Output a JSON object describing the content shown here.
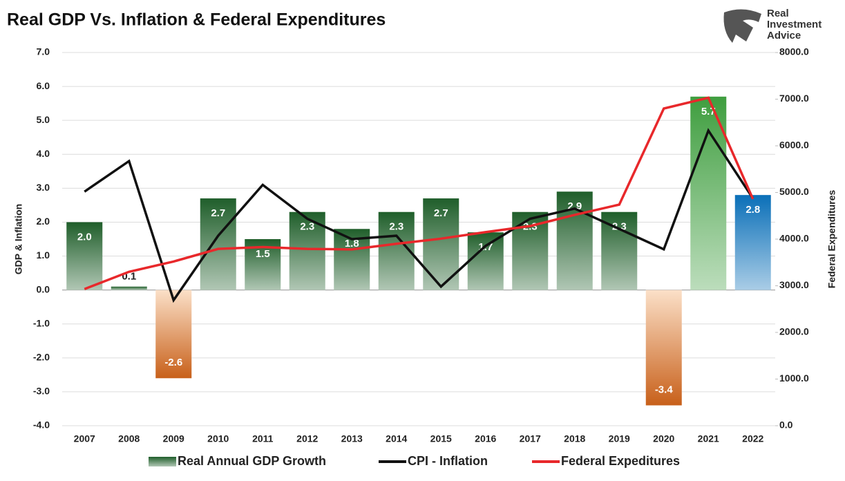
{
  "chart_data": {
    "type": "bar",
    "title": "Real GDP Vs. Inflation & Federal Expenditures",
    "logo": [
      "Real",
      "Investment",
      "Advice"
    ],
    "ylabel": "GDP & Inflation",
    "y2label": "Federal Expenditures",
    "categories": [
      "2007",
      "2008",
      "2009",
      "2010",
      "2011",
      "2012",
      "2013",
      "2014",
      "2015",
      "2016",
      "2017",
      "2018",
      "2019",
      "2020",
      "2021",
      "2022"
    ],
    "ylim": [
      -4,
      7
    ],
    "yticks": [
      {
        "value": -4,
        "label": "-4.0"
      },
      {
        "value": -3,
        "label": "-3.0"
      },
      {
        "value": -2,
        "label": "-2.0"
      },
      {
        "value": -1,
        "label": "-1.0"
      },
      {
        "value": 0,
        "label": "0.0"
      },
      {
        "value": 1,
        "label": "1.0"
      },
      {
        "value": 2,
        "label": "2.0"
      },
      {
        "value": 3,
        "label": "3.0"
      },
      {
        "value": 4,
        "label": "4.0"
      },
      {
        "value": 5,
        "label": "5.0"
      },
      {
        "value": 6,
        "label": "6.0"
      },
      {
        "value": 7,
        "label": "7.0"
      }
    ],
    "y2lim": [
      0,
      8000
    ],
    "y2ticks": [
      {
        "value": 0,
        "label": "0.0"
      },
      {
        "value": 1000,
        "label": "1000.0"
      },
      {
        "value": 2000,
        "label": "2000.0"
      },
      {
        "value": 3000,
        "label": "3000.0"
      },
      {
        "value": 4000,
        "label": "4000.0"
      },
      {
        "value": 5000,
        "label": "5000.0"
      },
      {
        "value": 6000,
        "label": "6000.0"
      },
      {
        "value": 7000,
        "label": "7000.0"
      },
      {
        "value": 8000,
        "label": "8000.0"
      }
    ],
    "grid": true,
    "series": [
      {
        "name": "Real Annual GDP Growth",
        "type": "bar",
        "color": "#1f5e2a",
        "bar_colors": [
          "#1f5e2a",
          "#1f5e2a",
          "#c8601a",
          "#1f5e2a",
          "#1f5e2a",
          "#1f5e2a",
          "#1f5e2a",
          "#1f5e2a",
          "#1f5e2a",
          "#1f5e2a",
          "#1f5e2a",
          "#1f5e2a",
          "#1f5e2a",
          "#c8601a",
          "#3f9e3f",
          "#0a6fb8"
        ],
        "values": [
          2.0,
          0.1,
          -2.6,
          2.7,
          1.5,
          2.3,
          1.8,
          2.3,
          2.7,
          1.7,
          2.3,
          2.9,
          2.3,
          -3.4,
          5.7,
          2.8
        ],
        "value_labels": [
          "2.0",
          "0.1",
          "-2.6",
          "2.7",
          "1.5",
          "2.3",
          "1.8",
          "2.3",
          "2.7",
          "1.7",
          "2.3",
          "2.9",
          "2.3",
          "-3.4",
          "5.7",
          "2.8"
        ]
      },
      {
        "name": "CPI - Inflation",
        "type": "line",
        "color": "#111111",
        "values": [
          2.9,
          3.8,
          -0.3,
          1.6,
          3.1,
          2.1,
          1.5,
          1.6,
          0.1,
          1.3,
          2.1,
          2.4,
          1.8,
          1.2,
          4.7,
          2.7
        ]
      },
      {
        "name": "Federal Expeditures",
        "type": "line",
        "axis": "y2",
        "color": "#e8282b",
        "values": [
          2930,
          3300,
          3520,
          3790,
          3830,
          3790,
          3780,
          3900,
          4010,
          4150,
          4280,
          4520,
          4740,
          6800,
          7030,
          4860
        ]
      }
    ]
  }
}
